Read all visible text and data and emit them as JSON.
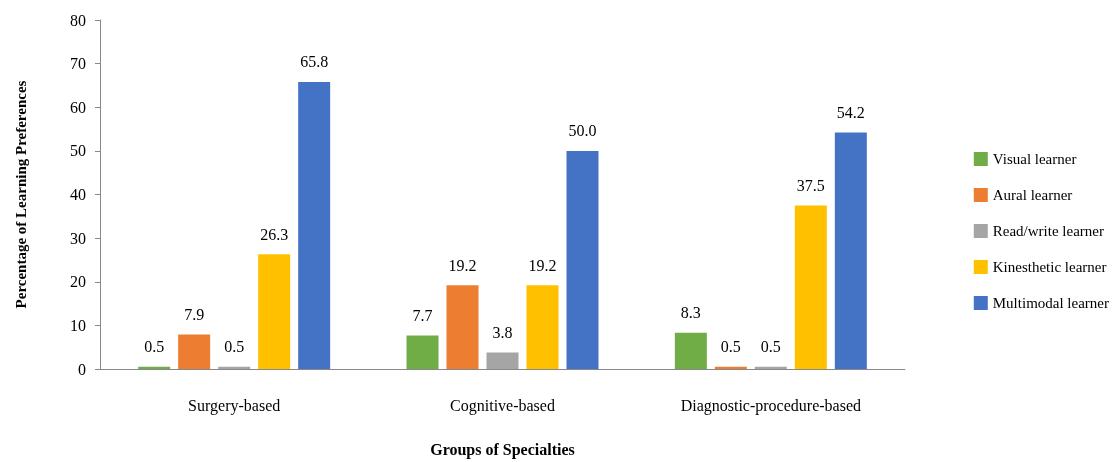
{
  "chart_data": {
    "type": "bar",
    "xlabel": "Groups of Specialties",
    "ylabel": "Percentage of Learning Preferences",
    "categories": [
      "Surgery-based",
      "Cognitive-based",
      "Diagnostic-procedure-based"
    ],
    "series": [
      {
        "name": "Visual learner",
        "color": "#70ad47",
        "values": [
          0.5,
          7.7,
          8.3
        ],
        "value_labels": [
          "0.5",
          "7.7",
          "8.3"
        ]
      },
      {
        "name": "Aural learner",
        "color": "#ed7d31",
        "values": [
          7.9,
          19.2,
          0.5
        ],
        "value_labels": [
          "7.9",
          "19.2",
          "0.5"
        ]
      },
      {
        "name": "Read/write learner",
        "color": "#a5a5a5",
        "values": [
          0.5,
          3.8,
          0.5
        ],
        "value_labels": [
          "0.5",
          "3.8",
          "0.5"
        ]
      },
      {
        "name": "Kinesthetic learner",
        "color": "#ffc000",
        "values": [
          26.3,
          19.2,
          37.5
        ],
        "value_labels": [
          "26.3",
          "19.2",
          "37.5"
        ]
      },
      {
        "name": "Multimodal learner",
        "color": "#4472c4",
        "values": [
          65.8,
          50.0,
          54.2
        ],
        "value_labels": [
          "65.8",
          "50.0",
          "54.2"
        ]
      }
    ],
    "ylim": [
      0,
      80
    ],
    "yticks": [
      0,
      10,
      20,
      30,
      40,
      50,
      60,
      70,
      80
    ],
    "grid": false,
    "legend": "right"
  }
}
